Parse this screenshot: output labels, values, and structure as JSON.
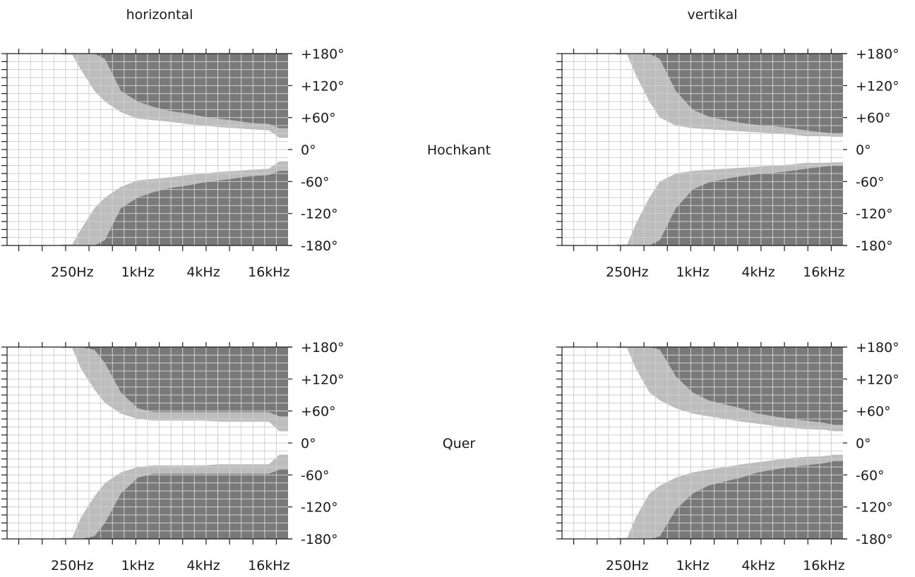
{
  "col_titles": {
    "left": "horizontal",
    "right": "vertikal"
  },
  "row_labels": {
    "top": "Hochkant",
    "bottom": "Quer"
  },
  "colors": {
    "dark": "#797979",
    "light": "#bdbdbd",
    "grid": "#cfcfcf",
    "axis": "#1a1a1a"
  },
  "chart_data": [
    {
      "type": "heatmap",
      "panel": "horizontal / Hochkant",
      "x_scale": "log2",
      "x_tick_labels": [
        "250Hz",
        "1kHz",
        "4kHz",
        "16kHz"
      ],
      "y_tick_labels": [
        "+180°",
        "+120°",
        "+60°",
        "0°",
        "-60°",
        "-120°",
        "-180°"
      ],
      "xlim_hz": [
        63,
        24000
      ],
      "ylim_deg": [
        -180,
        180
      ],
      "legend": "none",
      "levels": [
        "light = intermediate attenuation",
        "dark = strongest attenuation"
      ],
      "freqs": [
        200,
        250,
        300,
        400,
        500,
        700,
        1000,
        1400,
        2000,
        2800,
        4000,
        5600,
        8000,
        11000,
        16000,
        20000
      ],
      "light_edge_deg": [
        178,
        178,
        150,
        110,
        90,
        70,
        58,
        55,
        52,
        48,
        45,
        42,
        40,
        38,
        36,
        22
      ],
      "dark_edge_deg": [
        180,
        180,
        180,
        180,
        170,
        110,
        90,
        80,
        72,
        68,
        62,
        58,
        54,
        50,
        48,
        40
      ]
    },
    {
      "type": "heatmap",
      "panel": "vertikal / Hochkant",
      "x_scale": "log2",
      "x_tick_labels": [
        "250Hz",
        "1kHz",
        "4kHz",
        "16kHz"
      ],
      "y_tick_labels": [
        "+180°",
        "+120°",
        "+60°",
        "0°",
        "-60°",
        "-120°",
        "-180°"
      ],
      "xlim_hz": [
        63,
        24000
      ],
      "ylim_deg": [
        -180,
        180
      ],
      "legend": "none",
      "levels": [
        "light = intermediate attenuation",
        "dark = strongest attenuation"
      ],
      "freqs": [
        200,
        250,
        300,
        400,
        500,
        700,
        1000,
        1400,
        2000,
        2800,
        4000,
        5600,
        8000,
        11000,
        16000,
        20000
      ],
      "light_edge_deg": [
        178,
        178,
        140,
        90,
        60,
        45,
        40,
        38,
        36,
        34,
        32,
        30,
        28,
        25,
        25,
        24
      ],
      "dark_edge_deg": [
        180,
        180,
        180,
        180,
        170,
        110,
        75,
        62,
        55,
        50,
        46,
        44,
        40,
        36,
        32,
        30
      ]
    },
    {
      "type": "heatmap",
      "panel": "horizontal / Quer",
      "x_scale": "log2",
      "x_tick_labels": [
        "250Hz",
        "1kHz",
        "4kHz",
        "16kHz"
      ],
      "y_tick_labels": [
        "+180°",
        "+120°",
        "+60°",
        "0°",
        "-60°",
        "-120°",
        "-180°"
      ],
      "xlim_hz": [
        63,
        24000
      ],
      "ylim_deg": [
        -180,
        180
      ],
      "legend": "none",
      "levels": [
        "light = intermediate attenuation",
        "dark = strongest attenuation"
      ],
      "freqs": [
        200,
        250,
        300,
        400,
        500,
        700,
        1000,
        1400,
        2000,
        2800,
        4000,
        5600,
        8000,
        11000,
        16000,
        20000
      ],
      "light_edge_deg": [
        178,
        178,
        140,
        100,
        75,
        55,
        45,
        42,
        42,
        42,
        42,
        40,
        40,
        40,
        40,
        22
      ],
      "dark_edge_deg": [
        180,
        180,
        180,
        175,
        150,
        95,
        65,
        58,
        58,
        58,
        58,
        58,
        58,
        58,
        58,
        50
      ]
    },
    {
      "type": "heatmap",
      "panel": "vertikal / Quer",
      "x_scale": "log2",
      "x_tick_labels": [
        "250Hz",
        "1kHz",
        "4kHz",
        "16kHz"
      ],
      "y_tick_labels": [
        "+180°",
        "+120°",
        "+60°",
        "0°",
        "-60°",
        "-120°",
        "-180°"
      ],
      "xlim_hz": [
        63,
        24000
      ],
      "ylim_deg": [
        -180,
        180
      ],
      "legend": "none",
      "levels": [
        "light = intermediate attenuation",
        "dark = strongest attenuation"
      ],
      "freqs": [
        200,
        250,
        300,
        400,
        500,
        700,
        1000,
        1400,
        2000,
        2800,
        4000,
        5600,
        8000,
        11000,
        16000,
        20000
      ],
      "light_edge_deg": [
        178,
        178,
        140,
        95,
        80,
        65,
        55,
        50,
        45,
        40,
        36,
        32,
        28,
        26,
        25,
        22
      ],
      "dark_edge_deg": [
        180,
        180,
        180,
        180,
        175,
        125,
        95,
        80,
        72,
        65,
        55,
        50,
        45,
        42,
        38,
        34
      ]
    }
  ]
}
